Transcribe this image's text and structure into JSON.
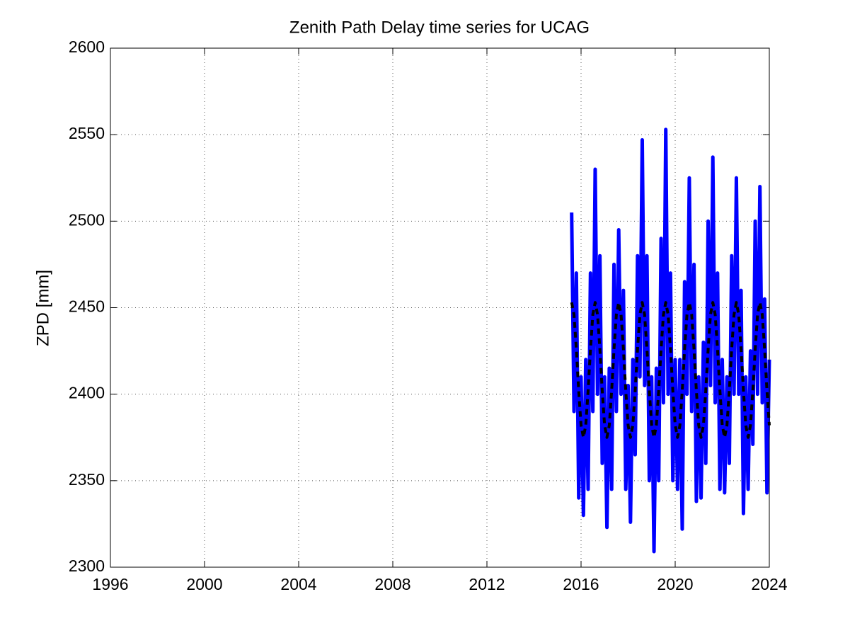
{
  "chart_data": {
    "type": "line",
    "title": "Zenith Path Delay time series for UCAG",
    "ylabel": "ZPD [mm]",
    "x": [
      2015.6,
      2015.7,
      2015.8,
      2015.9,
      2016.0,
      2016.1,
      2016.2,
      2016.3,
      2016.4,
      2016.5,
      2016.6,
      2016.7,
      2016.8,
      2016.9,
      2017.0,
      2017.1,
      2017.2,
      2017.3,
      2017.4,
      2017.5,
      2017.6,
      2017.7,
      2017.8,
      2017.9,
      2018.0,
      2018.1,
      2018.2,
      2018.3,
      2018.4,
      2018.5,
      2018.6,
      2018.7,
      2018.8,
      2018.9,
      2019.0,
      2019.1,
      2019.2,
      2019.3,
      2019.4,
      2019.5,
      2019.6,
      2019.7,
      2019.8,
      2019.9,
      2020.0,
      2020.1,
      2020.2,
      2020.3,
      2020.4,
      2020.5,
      2020.6,
      2020.7,
      2020.8,
      2020.9,
      2021.0,
      2021.1,
      2021.2,
      2021.3,
      2021.4,
      2021.5,
      2021.6,
      2021.7,
      2021.8,
      2021.9,
      2022.0,
      2022.1,
      2022.2,
      2022.3,
      2022.4,
      2022.5,
      2022.6,
      2022.7,
      2022.8,
      2022.9,
      2023.0,
      2023.1,
      2023.2,
      2023.3,
      2023.4,
      2023.5,
      2023.6,
      2023.7,
      2023.8,
      2023.9,
      2024.0
    ],
    "series": [
      {
        "color": "#0000ff",
        "style": "solid",
        "values": [
          2505,
          2390,
          2470,
          2340,
          2410,
          2330,
          2420,
          2345,
          2470,
          2390,
          2530,
          2400,
          2480,
          2360,
          2410,
          2323,
          2415,
          2345,
          2475,
          2390,
          2495,
          2400,
          2460,
          2345,
          2405,
          2326,
          2420,
          2365,
          2480,
          2410,
          2547,
          2405,
          2480,
          2350,
          2410,
          2309,
          2415,
          2350,
          2490,
          2395,
          2553,
          2400,
          2470,
          2350,
          2420,
          2345,
          2420,
          2322,
          2465,
          2400,
          2525,
          2390,
          2475,
          2338,
          2410,
          2340,
          2430,
          2360,
          2500,
          2405,
          2537,
          2395,
          2470,
          2345,
          2420,
          2343,
          2410,
          2360,
          2480,
          2400,
          2525,
          2400,
          2460,
          2331,
          2410,
          2345,
          2425,
          2371,
          2500,
          2400,
          2520,
          2395,
          2455,
          2343,
          2420
        ]
      },
      {
        "color": "#000000",
        "style": "dashed",
        "values": [
          2453,
          2446,
          2426,
          2402,
          2382,
          2375,
          2382,
          2402,
          2426,
          2446,
          2453,
          2446,
          2426,
          2402,
          2382,
          2375,
          2382,
          2402,
          2426,
          2446,
          2453,
          2446,
          2426,
          2402,
          2382,
          2375,
          2382,
          2402,
          2426,
          2446,
          2453,
          2446,
          2426,
          2402,
          2382,
          2375,
          2382,
          2402,
          2426,
          2446,
          2453,
          2446,
          2426,
          2402,
          2382,
          2375,
          2382,
          2402,
          2426,
          2446,
          2453,
          2446,
          2426,
          2402,
          2382,
          2375,
          2382,
          2402,
          2426,
          2446,
          2453,
          2446,
          2426,
          2402,
          2382,
          2375,
          2382,
          2402,
          2426,
          2446,
          2453,
          2446,
          2426,
          2402,
          2382,
          2375,
          2382,
          2402,
          2426,
          2446,
          2453,
          2446,
          2426,
          2402,
          2382
        ]
      }
    ],
    "xlim": [
      1996,
      2024
    ],
    "xticks": [
      1996,
      2000,
      2004,
      2008,
      2012,
      2016,
      2020,
      2024
    ],
    "ylim": [
      2300,
      2600
    ],
    "yticks": [
      2300,
      2350,
      2400,
      2450,
      2500,
      2550,
      2600
    ],
    "grid": true
  }
}
